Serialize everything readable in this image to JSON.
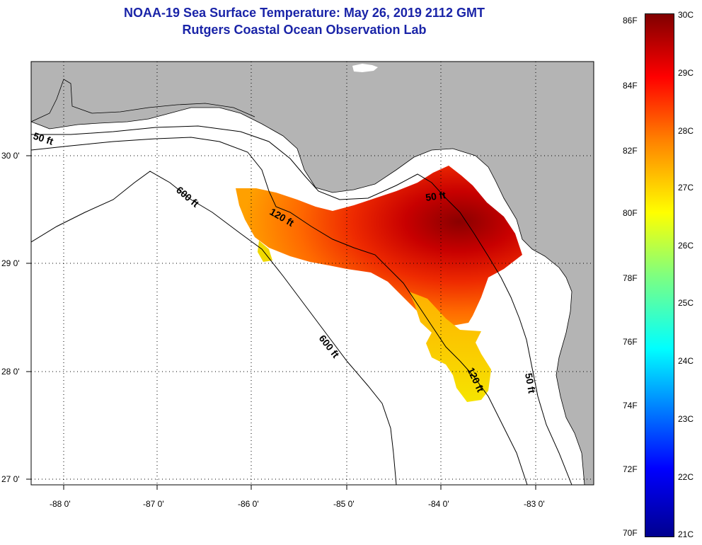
{
  "header": {
    "title_line1": "NOAA-19 Sea Surface Temperature:  May 26, 2019 2112 GMT",
    "title_line2": "Rutgers Coastal Ocean Observation Lab"
  },
  "map": {
    "lat_labels": [
      "30 0'",
      "29 0'",
      "28 0'",
      "27 0'"
    ],
    "lon_labels": [
      "-88 0'",
      "-87 0'",
      "-86 0'",
      "-85 0'",
      "-84 0'",
      "-83 0'"
    ],
    "depth_labels": [
      "50 ft",
      "600 ft",
      "120 ft",
      "50 ft",
      "600 ft",
      "120 ft",
      "50 ft"
    ],
    "colors": {
      "land": "#b4b4b4",
      "sea": "#ffffff",
      "contour": "#000000"
    }
  },
  "colorbar": {
    "fahrenheit": [
      "86F",
      "84F",
      "82F",
      "80F",
      "78F",
      "76F",
      "74F",
      "72F",
      "70F"
    ],
    "celsius": [
      "30C",
      "29C",
      "28C",
      "27C",
      "26C",
      "25C",
      "24C",
      "23C",
      "22C",
      "21C"
    ]
  }
}
